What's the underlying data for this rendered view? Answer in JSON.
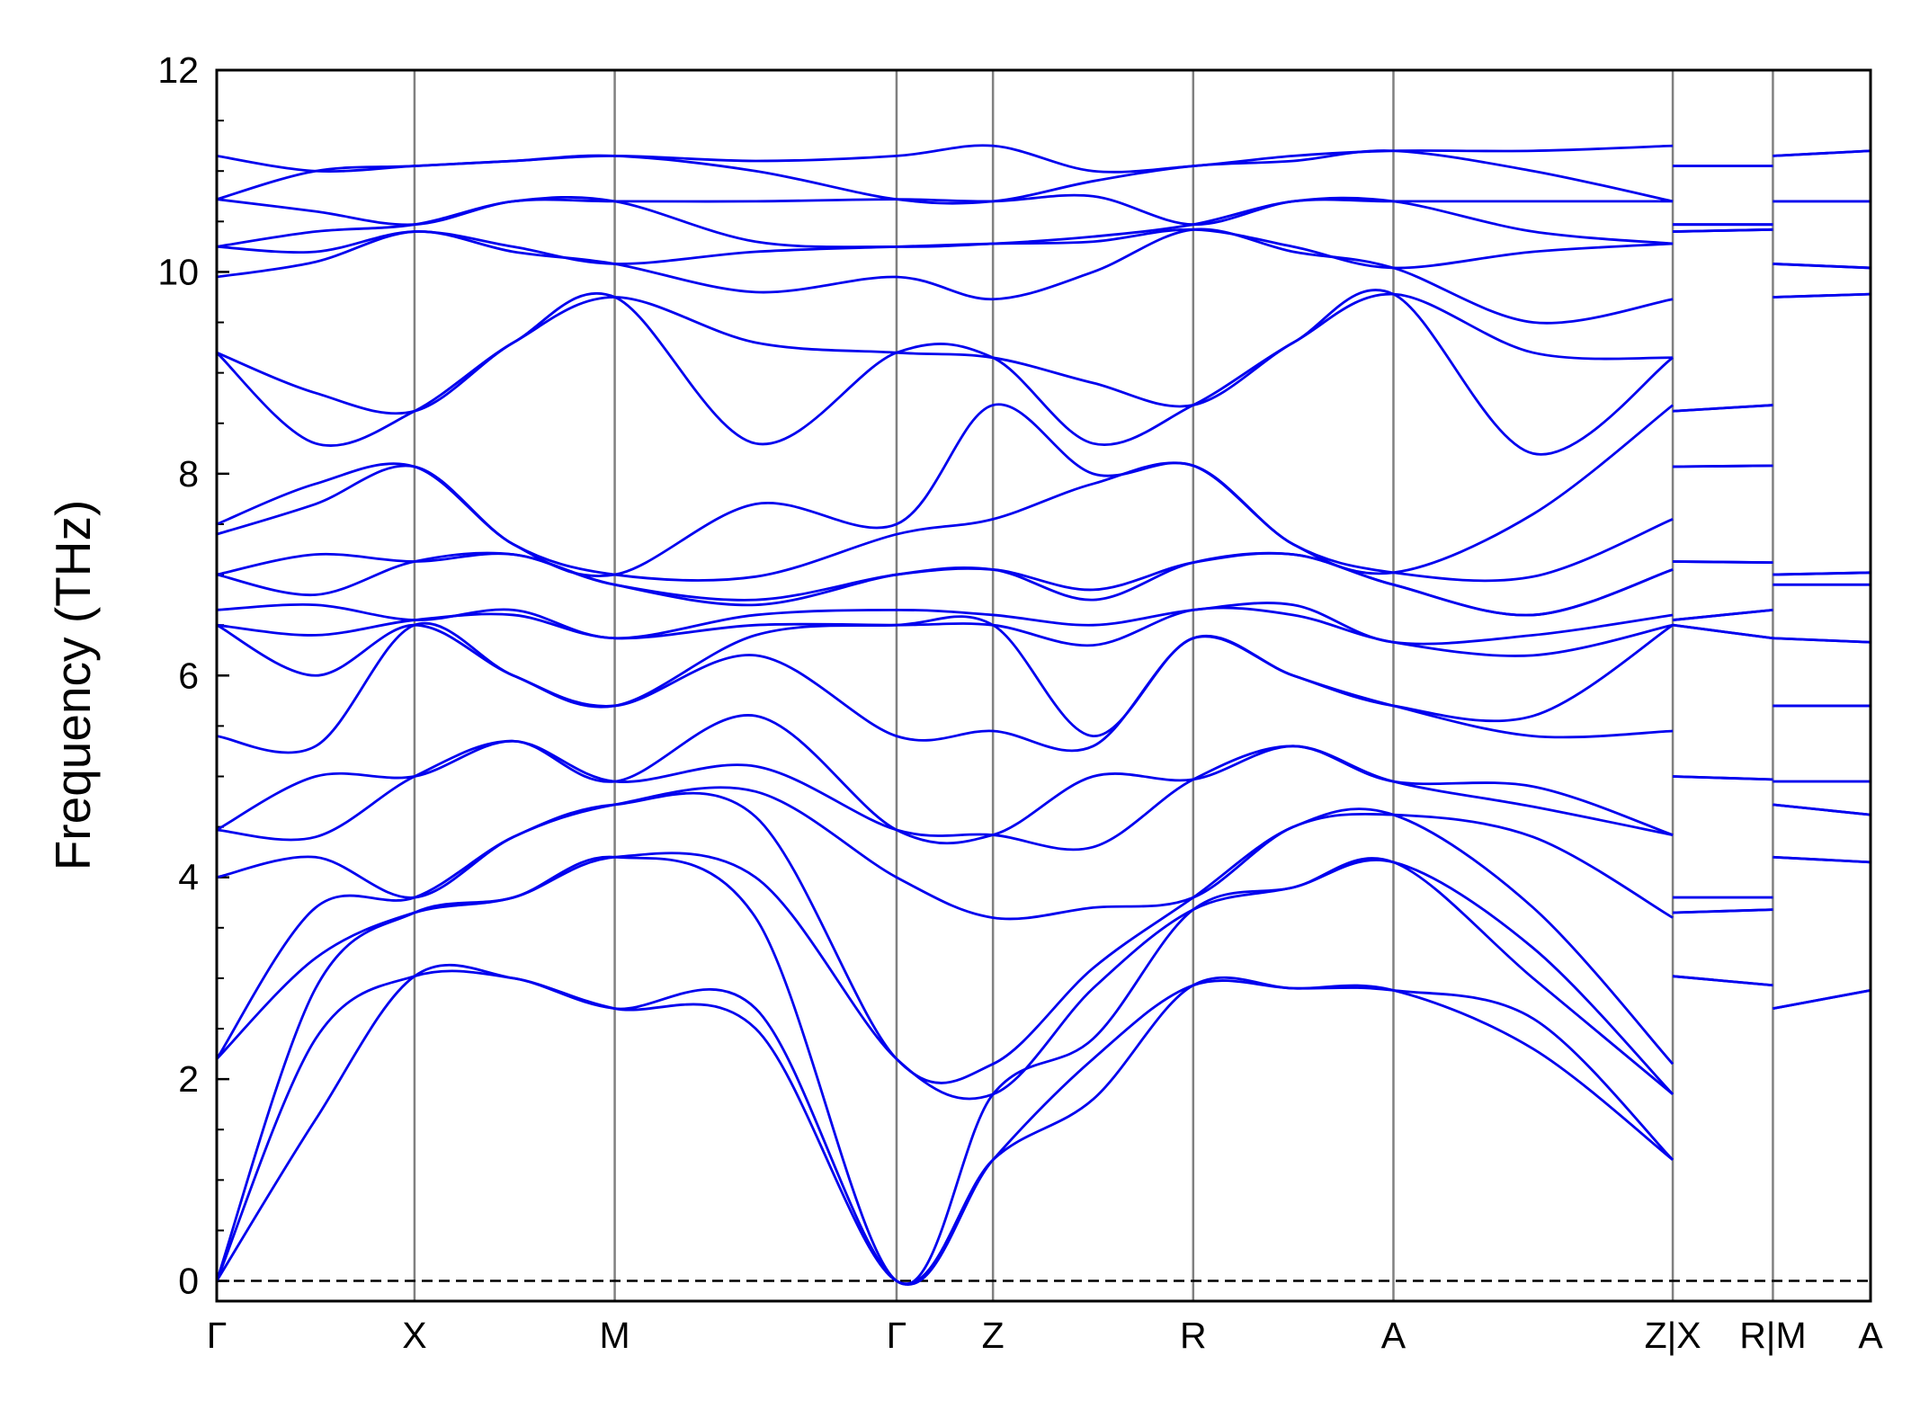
{
  "chart_data": {
    "type": "line",
    "ylabel": "Frequency (THz)",
    "color": "#0000ee",
    "x": [
      0,
      0.8,
      1.6,
      2.4,
      3.22,
      4.36,
      5.5,
      6.28,
      7.09,
      7.9,
      8.71,
      9.52,
      10.65,
      11.78,
      11.78,
      11.78,
      12.59,
      12.59,
      12.59,
      13.38
    ],
    "xlim": [
      0,
      13.38
    ],
    "xticks": [
      {
        "value": 0,
        "label": "Γ"
      },
      {
        "value": 1.6,
        "label": "X"
      },
      {
        "value": 3.22,
        "label": "M"
      },
      {
        "value": 5.5,
        "label": "Γ"
      },
      {
        "value": 6.28,
        "label": "Z"
      },
      {
        "value": 7.9,
        "label": "R"
      },
      {
        "value": 9.52,
        "label": "A"
      },
      {
        "value": 11.78,
        "label": "Z|X"
      },
      {
        "value": 12.59,
        "label": "R|M"
      },
      {
        "value": 13.38,
        "label": "A"
      }
    ],
    "xgrid": true,
    "ylim": [
      -0.2,
      12
    ],
    "yticks": [
      0,
      2,
      4,
      6,
      8,
      10,
      12
    ],
    "yminorticks": [
      0.5,
      1,
      1.5,
      2.5,
      3,
      3.5,
      4.5,
      5,
      5.5,
      6.5,
      7,
      7.5,
      8.5,
      9,
      9.5,
      10.5,
      11,
      11.5
    ],
    "hline": 0,
    "series": [
      {
        "values": [
          0,
          1.6,
          3.02,
          3.0,
          2.7,
          2.5,
          0,
          1.2,
          1.8,
          2.93,
          2.9,
          2.88,
          2.3,
          1.2,
          null,
          3.02,
          2.93,
          null,
          2.7,
          2.88
        ]
      },
      {
        "values": [
          0,
          2.4,
          3.02,
          3.0,
          2.7,
          2.7,
          0,
          1.2,
          2.2,
          2.93,
          2.9,
          2.88,
          2.6,
          1.2,
          null,
          3.02,
          2.93,
          null,
          2.7,
          2.88
        ]
      },
      {
        "values": [
          0,
          2.9,
          3.65,
          3.8,
          4.2,
          3.6,
          0,
          1.85,
          2.4,
          3.68,
          3.9,
          4.15,
          3.0,
          1.85,
          null,
          3.65,
          3.68,
          null,
          4.2,
          4.15
        ]
      },
      {
        "values": [
          2.2,
          3.2,
          3.65,
          3.8,
          4.2,
          4.0,
          2.2,
          1.85,
          2.9,
          3.68,
          3.9,
          4.15,
          3.3,
          1.85,
          null,
          3.65,
          3.68,
          null,
          4.2,
          4.15
        ]
      },
      {
        "values": [
          2.2,
          3.7,
          3.8,
          4.4,
          4.72,
          4.6,
          2.2,
          2.15,
          3.1,
          3.8,
          4.5,
          4.62,
          3.7,
          2.15,
          null,
          3.8,
          3.8,
          null,
          4.72,
          4.62
        ]
      },
      {
        "values": [
          4.0,
          4.2,
          3.8,
          4.4,
          4.72,
          4.85,
          4.0,
          3.6,
          3.7,
          3.8,
          4.5,
          4.62,
          4.4,
          3.6,
          null,
          3.8,
          3.8,
          null,
          4.72,
          4.62
        ]
      },
      {
        "values": [
          4.47,
          4.4,
          5.0,
          5.35,
          4.95,
          5.1,
          4.47,
          4.42,
          4.3,
          4.97,
          5.3,
          4.95,
          4.7,
          4.42,
          null,
          5.0,
          4.97,
          null,
          4.95,
          4.95
        ]
      },
      {
        "values": [
          4.47,
          5.0,
          5.0,
          5.35,
          4.95,
          5.6,
          4.47,
          4.42,
          5.0,
          4.97,
          5.3,
          4.95,
          4.9,
          4.42,
          null,
          5.0,
          4.97,
          null,
          4.95,
          4.95
        ]
      },
      {
        "values": [
          5.4,
          5.3,
          6.5,
          6.0,
          5.7,
          6.2,
          5.4,
          5.45,
          5.3,
          6.37,
          6.0,
          5.7,
          5.4,
          5.45,
          null,
          6.5,
          6.37,
          null,
          5.7,
          5.7
        ]
      },
      {
        "values": [
          6.5,
          6.0,
          6.5,
          6.0,
          5.7,
          6.4,
          6.5,
          6.5,
          5.4,
          6.37,
          6.0,
          5.7,
          5.6,
          6.5,
          null,
          6.5,
          6.37,
          null,
          5.7,
          5.7
        ]
      },
      {
        "values": [
          6.5,
          6.4,
          6.55,
          6.6,
          6.37,
          6.5,
          6.5,
          6.5,
          6.3,
          6.65,
          6.6,
          6.33,
          6.2,
          6.5,
          null,
          6.55,
          6.65,
          null,
          6.37,
          6.33
        ]
      },
      {
        "values": [
          6.65,
          6.7,
          6.55,
          6.65,
          6.37,
          6.6,
          6.65,
          6.6,
          6.5,
          6.65,
          6.7,
          6.33,
          6.4,
          6.6,
          null,
          6.55,
          6.65,
          null,
          6.37,
          6.33
        ]
      },
      {
        "values": [
          7.0,
          6.8,
          7.13,
          7.2,
          6.9,
          6.7,
          7.0,
          7.05,
          6.75,
          7.12,
          7.2,
          6.9,
          6.6,
          7.05,
          null,
          7.13,
          7.12,
          null,
          6.9,
          6.9
        ]
      },
      {
        "values": [
          7.0,
          7.2,
          7.13,
          7.2,
          6.9,
          6.75,
          7.0,
          7.05,
          6.85,
          7.12,
          7.2,
          6.9,
          6.6,
          7.05,
          null,
          7.13,
          7.12,
          null,
          6.9,
          6.9
        ]
      },
      {
        "values": [
          7.4,
          7.7,
          8.07,
          7.3,
          7.0,
          6.98,
          7.4,
          7.55,
          7.9,
          8.08,
          7.3,
          7.02,
          6.98,
          7.55,
          null,
          8.07,
          8.08,
          null,
          7.0,
          7.02
        ]
      },
      {
        "values": [
          7.5,
          7.9,
          8.07,
          7.3,
          7.0,
          7.7,
          7.5,
          8.68,
          8.0,
          8.08,
          7.3,
          7.02,
          7.6,
          8.68,
          null,
          8.07,
          8.08,
          null,
          7.0,
          7.02
        ]
      },
      {
        "values": [
          9.2,
          8.3,
          8.62,
          9.3,
          9.75,
          8.3,
          9.2,
          9.15,
          8.3,
          8.68,
          9.3,
          9.78,
          8.2,
          9.15,
          null,
          8.62,
          8.68,
          null,
          9.75,
          9.78
        ]
      },
      {
        "values": [
          9.2,
          8.8,
          8.62,
          9.3,
          9.75,
          9.3,
          9.2,
          9.15,
          8.9,
          8.68,
          9.3,
          9.78,
          9.2,
          9.15,
          null,
          8.62,
          8.68,
          null,
          9.75,
          9.78
        ]
      },
      {
        "values": [
          9.95,
          10.1,
          10.4,
          10.2,
          10.08,
          9.8,
          9.95,
          9.73,
          10.0,
          10.42,
          10.2,
          10.04,
          9.5,
          9.73,
          null,
          10.4,
          10.42,
          null,
          10.08,
          10.04
        ]
      },
      {
        "values": [
          10.25,
          10.2,
          10.4,
          10.25,
          10.08,
          10.2,
          10.25,
          10.28,
          10.3,
          10.42,
          10.25,
          10.04,
          10.2,
          10.28,
          null,
          10.4,
          10.42,
          null,
          10.08,
          10.04
        ]
      },
      {
        "values": [
          10.25,
          10.4,
          10.47,
          10.7,
          10.7,
          10.3,
          10.25,
          10.28,
          10.35,
          10.47,
          10.7,
          10.7,
          10.4,
          10.28,
          null,
          10.47,
          10.47,
          null,
          10.7,
          10.7
        ]
      },
      {
        "values": [
          10.72,
          10.6,
          10.47,
          10.7,
          10.7,
          10.7,
          10.72,
          10.7,
          10.75,
          10.47,
          10.7,
          10.7,
          10.7,
          10.7,
          null,
          10.47,
          10.47,
          null,
          10.7,
          10.7
        ]
      },
      {
        "values": [
          10.72,
          11.0,
          11.05,
          11.1,
          11.15,
          11.0,
          10.72,
          10.7,
          10.9,
          11.05,
          11.1,
          11.2,
          11.0,
          10.7,
          null,
          11.05,
          11.05,
          null,
          11.15,
          11.2
        ]
      },
      {
        "values": [
          11.15,
          11.0,
          11.05,
          11.1,
          11.15,
          11.1,
          11.15,
          11.25,
          11.0,
          11.05,
          11.15,
          11.2,
          11.2,
          11.25,
          null,
          11.05,
          11.05,
          null,
          11.15,
          11.2
        ]
      }
    ]
  }
}
